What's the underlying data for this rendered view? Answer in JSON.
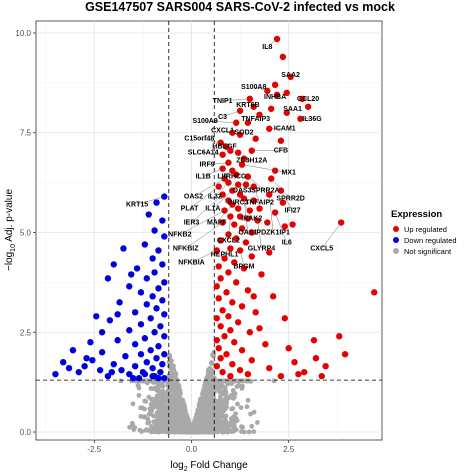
{
  "chart_data": {
    "type": "scatter",
    "title": "GSE147507 SARS004 SARS-CoV-2 infected vs mock",
    "xlabel": {
      "prefix": "log",
      "subscript": "2",
      "suffix": " Fold Change"
    },
    "ylabel": {
      "prefix": "−log",
      "subscript": "10",
      "suffix": " Adj. p-value"
    },
    "xlim": [
      -4.0,
      4.9
    ],
    "ylim": [
      -0.2,
      10.3
    ],
    "x_ticks": [
      -2.5,
      0.0,
      2.5
    ],
    "x_tick_labels": [
      "-2.5",
      "0.0",
      "2.5"
    ],
    "y_ticks": [
      0.0,
      2.5,
      5.0,
      7.5,
      10.0
    ],
    "y_tick_labels": [
      "0.0",
      "2.5",
      "5.0",
      "7.5",
      "10.0"
    ],
    "grid": true,
    "thresholds": {
      "log2fc": [
        -0.585,
        0.585
      ],
      "neg_log10_padj": 1.3
    },
    "legend": {
      "title": "Expression",
      "position": "right",
      "entries": [
        {
          "label": "Up regulated",
          "color": "#e60000"
        },
        {
          "label": "Down regulated",
          "color": "#0000dd"
        },
        {
          "label": "Not significant",
          "color": "#a9a9a9"
        }
      ]
    },
    "series": [
      {
        "name": "Up regulated",
        "color": "#e60000",
        "points": [
          [
            2.2,
            9.85
          ],
          [
            2.35,
            9.4
          ],
          [
            2.55,
            8.9
          ],
          [
            2.15,
            8.7
          ],
          [
            2.2,
            8.45
          ],
          [
            1.95,
            8.55
          ],
          [
            2.45,
            8.5
          ],
          [
            2.85,
            8.35
          ],
          [
            3.0,
            8.15
          ],
          [
            1.5,
            8.35
          ],
          [
            1.6,
            8.15
          ],
          [
            2.05,
            8.1
          ],
          [
            2.45,
            8.0
          ],
          [
            1.25,
            8.05
          ],
          [
            1.75,
            7.95
          ],
          [
            2.8,
            7.85
          ],
          [
            1.15,
            7.75
          ],
          [
            1.45,
            7.75
          ],
          [
            2.0,
            7.6
          ],
          [
            1.05,
            7.5
          ],
          [
            1.25,
            7.45
          ],
          [
            1.65,
            7.35
          ],
          [
            2.3,
            7.3
          ],
          [
            0.75,
            7.25
          ],
          [
            0.9,
            7.15
          ],
          [
            1.0,
            7.05
          ],
          [
            1.2,
            7.0
          ],
          [
            1.55,
            7.05
          ],
          [
            0.8,
            6.95
          ],
          [
            1.35,
            6.85
          ],
          [
            0.95,
            6.75
          ],
          [
            1.3,
            6.7
          ],
          [
            2.15,
            6.55
          ],
          [
            0.8,
            6.6
          ],
          [
            1.05,
            6.55
          ],
          [
            1.15,
            6.45
          ],
          [
            1.45,
            6.4
          ],
          [
            2.05,
            6.35
          ],
          [
            0.85,
            6.35
          ],
          [
            0.95,
            6.25
          ],
          [
            1.2,
            6.2
          ],
          [
            1.4,
            6.2
          ],
          [
            1.6,
            6.15
          ],
          [
            2.3,
            6.05
          ],
          [
            0.7,
            6.15
          ],
          [
            1.05,
            6.05
          ],
          [
            2.0,
            5.95
          ],
          [
            1.25,
            5.95
          ],
          [
            0.8,
            5.95
          ],
          [
            1.35,
            5.85
          ],
          [
            1.6,
            5.8
          ],
          [
            2.35,
            5.75
          ],
          [
            0.95,
            5.8
          ],
          [
            1.05,
            5.7
          ],
          [
            1.75,
            5.6
          ],
          [
            1.2,
            5.6
          ],
          [
            1.5,
            5.55
          ],
          [
            2.15,
            5.5
          ],
          [
            0.85,
            5.55
          ],
          [
            1.0,
            5.4
          ],
          [
            1.25,
            5.4
          ],
          [
            1.45,
            5.35
          ],
          [
            1.7,
            5.3
          ],
          [
            1.95,
            5.25
          ],
          [
            2.4,
            5.15
          ],
          [
            1.1,
            5.2
          ],
          [
            0.8,
            5.25
          ],
          [
            1.3,
            5.1
          ],
          [
            3.85,
            5.25
          ],
          [
            2.6,
            5.2
          ],
          [
            1.55,
            5.0
          ],
          [
            0.95,
            4.95
          ],
          [
            1.15,
            4.85
          ],
          [
            1.4,
            4.75
          ],
          [
            0.75,
            4.8
          ],
          [
            1.0,
            4.6
          ],
          [
            1.25,
            4.55
          ],
          [
            0.65,
            4.55
          ],
          [
            1.55,
            4.4
          ],
          [
            0.85,
            4.35
          ],
          [
            1.1,
            4.25
          ],
          [
            0.7,
            4.15
          ],
          [
            1.35,
            4.1
          ],
          [
            0.95,
            4.0
          ],
          [
            1.8,
            3.95
          ],
          [
            0.75,
            3.85
          ],
          [
            1.15,
            3.75
          ],
          [
            0.65,
            3.65
          ],
          [
            1.45,
            3.55
          ],
          [
            0.9,
            3.5
          ],
          [
            2.1,
            3.4
          ],
          [
            0.7,
            3.35
          ],
          [
            1.05,
            3.25
          ],
          [
            1.3,
            3.15
          ],
          [
            0.8,
            3.05
          ],
          [
            1.65,
            3.0
          ],
          [
            0.95,
            2.9
          ],
          [
            0.65,
            2.85
          ],
          [
            1.2,
            2.75
          ],
          [
            2.4,
            2.85
          ],
          [
            0.75,
            2.65
          ],
          [
            1.0,
            2.55
          ],
          [
            1.5,
            2.5
          ],
          [
            0.85,
            2.4
          ],
          [
            0.65,
            2.3
          ],
          [
            1.1,
            2.25
          ],
          [
            1.9,
            2.2
          ],
          [
            0.7,
            2.1
          ],
          [
            1.3,
            2.05
          ],
          [
            0.9,
            1.95
          ],
          [
            3.15,
            2.3
          ],
          [
            0.75,
            1.85
          ],
          [
            1.55,
            1.8
          ],
          [
            2.65,
            1.75
          ],
          [
            1.05,
            1.7
          ],
          [
            0.65,
            1.65
          ],
          [
            2.0,
            1.6
          ],
          [
            3.45,
            1.65
          ],
          [
            1.25,
            1.55
          ],
          [
            0.8,
            1.5
          ],
          [
            2.9,
            1.5
          ],
          [
            1.45,
            1.45
          ],
          [
            2.3,
            1.4
          ],
          [
            1.0,
            1.4
          ],
          [
            3.8,
            2.4
          ],
          [
            4.7,
            3.5
          ],
          [
            3.95,
            1.95
          ],
          [
            3.35,
            1.4
          ],
          [
            2.5,
            2.1
          ],
          [
            1.75,
            2.6
          ],
          [
            2.0,
            4.5
          ],
          [
            1.6,
            3.4
          ],
          [
            3.2,
            1.85
          ],
          [
            2.75,
            1.45
          ]
        ]
      },
      {
        "name": "Down regulated",
        "color": "#0000dd",
        "points": [
          [
            -0.7,
            5.9
          ],
          [
            -0.9,
            5.75
          ],
          [
            -1.1,
            5.45
          ],
          [
            -0.75,
            5.3
          ],
          [
            -0.95,
            5.05
          ],
          [
            -0.7,
            4.9
          ],
          [
            -1.2,
            4.7
          ],
          [
            -0.85,
            4.55
          ],
          [
            -2.0,
            4.2
          ],
          [
            -1.0,
            4.35
          ],
          [
            -0.75,
            4.2
          ],
          [
            -1.4,
            4.1
          ],
          [
            -0.95,
            4.0
          ],
          [
            -2.15,
            3.85
          ],
          [
            -1.15,
            3.85
          ],
          [
            -0.7,
            3.75
          ],
          [
            -1.6,
            3.65
          ],
          [
            -0.85,
            3.6
          ],
          [
            -1.3,
            3.5
          ],
          [
            -1.0,
            3.4
          ],
          [
            -0.75,
            3.3
          ],
          [
            -1.85,
            3.25
          ],
          [
            -1.15,
            3.2
          ],
          [
            -0.9,
            3.1
          ],
          [
            -1.45,
            3.0
          ],
          [
            -0.7,
            2.95
          ],
          [
            -1.05,
            2.85
          ],
          [
            -2.1,
            2.8
          ],
          [
            -1.3,
            2.7
          ],
          [
            -0.8,
            2.65
          ],
          [
            -1.6,
            2.55
          ],
          [
            -0.95,
            2.5
          ],
          [
            -0.7,
            2.4
          ],
          [
            -1.2,
            2.35
          ],
          [
            -1.9,
            2.3
          ],
          [
            -1.45,
            2.2
          ],
          [
            -0.85,
            2.15
          ],
          [
            -1.05,
            2.05
          ],
          [
            -2.3,
            2.0
          ],
          [
            -0.7,
            1.95
          ],
          [
            -1.3,
            1.95
          ],
          [
            -1.7,
            1.9
          ],
          [
            -0.9,
            1.85
          ],
          [
            -2.55,
            1.8
          ],
          [
            -1.15,
            1.75
          ],
          [
            -2.0,
            1.7
          ],
          [
            -0.75,
            1.7
          ],
          [
            -1.45,
            1.65
          ],
          [
            -2.75,
            1.65
          ],
          [
            -1.0,
            1.6
          ],
          [
            -3.15,
            1.6
          ],
          [
            -1.8,
            1.55
          ],
          [
            -2.35,
            1.55
          ],
          [
            -0.8,
            1.5
          ],
          [
            -1.25,
            1.5
          ],
          [
            -2.9,
            1.5
          ],
          [
            -1.6,
            1.45
          ],
          [
            -3.5,
            1.45
          ],
          [
            -1.0,
            1.4
          ],
          [
            -2.15,
            1.4
          ],
          [
            -1.35,
            1.35
          ],
          [
            -0.7,
            1.35
          ],
          [
            -2.6,
            2.25
          ],
          [
            -2.3,
            2.5
          ],
          [
            -1.75,
            4.6
          ],
          [
            -3.05,
            2.05
          ],
          [
            -1.55,
            3.95
          ],
          [
            -2.45,
            2.9
          ],
          [
            -0.95,
            1.4
          ],
          [
            -1.9,
            2.95
          ],
          [
            -1.2,
            1.45
          ],
          [
            -2.7,
            1.85
          ],
          [
            -3.3,
            1.75
          ],
          [
            -2.05,
            1.5
          ],
          [
            -1.5,
            1.35
          ],
          [
            -0.85,
            1.35
          ]
        ]
      }
    ],
    "labels": [
      {
        "text": "IL8",
        "x": 2.2,
        "y": 9.85,
        "tx": 1.95,
        "ty": 9.6
      },
      {
        "text": "SAA2",
        "x": 2.55,
        "y": 8.9,
        "tx": 2.55,
        "ty": 8.9
      },
      {
        "text": "S100A8",
        "x": 1.95,
        "y": 8.55,
        "tx": 1.6,
        "ty": 8.6
      },
      {
        "text": "CCL20",
        "x": 2.85,
        "y": 8.35,
        "tx": 3.0,
        "ty": 8.3
      },
      {
        "text": "INHBA",
        "x": 2.15,
        "y": 8.45,
        "tx": 2.15,
        "ty": 8.35
      },
      {
        "text": "TNIP1",
        "x": 1.5,
        "y": 8.35,
        "tx": 0.8,
        "ty": 8.25
      },
      {
        "text": "KRT6B",
        "x": 1.6,
        "y": 8.15,
        "tx": 1.45,
        "ty": 8.15
      },
      {
        "text": "SAA1",
        "x": 2.45,
        "y": 8.0,
        "tx": 2.6,
        "ty": 8.05
      },
      {
        "text": "C3",
        "x": 1.25,
        "y": 8.05,
        "tx": 0.8,
        "ty": 7.85
      },
      {
        "text": "TNFAIP3",
        "x": 1.75,
        "y": 7.95,
        "tx": 1.65,
        "ty": 7.8
      },
      {
        "text": "IL36G",
        "x": 2.8,
        "y": 7.85,
        "tx": 3.1,
        "ty": 7.8
      },
      {
        "text": "S100A9",
        "x": 1.15,
        "y": 7.75,
        "tx": 0.35,
        "ty": 7.75
      },
      {
        "text": "ICAM1",
        "x": 2.0,
        "y": 7.6,
        "tx": 2.4,
        "ty": 7.55
      },
      {
        "text": "CXCL1",
        "x": 1.05,
        "y": 7.5,
        "tx": 0.8,
        "ty": 7.5
      },
      {
        "text": "SOD2",
        "x": 1.25,
        "y": 7.45,
        "tx": 1.35,
        "ty": 7.45
      },
      {
        "text": "C15orf48",
        "x": 0.75,
        "y": 7.25,
        "tx": 0.2,
        "ty": 7.3
      },
      {
        "text": "HBEGF",
        "x": 0.9,
        "y": 7.15,
        "tx": 0.85,
        "ty": 7.1
      },
      {
        "text": "CFB",
        "x": 1.55,
        "y": 7.05,
        "tx": 2.3,
        "ty": 7.0
      },
      {
        "text": "SLC6A14",
        "x": 0.8,
        "y": 6.95,
        "tx": 0.3,
        "ty": 6.95
      },
      {
        "text": "ZC3H12A",
        "x": 1.35,
        "y": 6.85,
        "tx": 1.55,
        "ty": 6.75
      },
      {
        "text": "IRF9",
        "x": 0.95,
        "y": 6.75,
        "tx": 0.4,
        "ty": 6.65
      },
      {
        "text": "MX1",
        "x": 1.3,
        "y": 6.7,
        "tx": 2.5,
        "ty": 6.45
      },
      {
        "text": "IL1B",
        "x": 0.8,
        "y": 6.6,
        "tx": 0.3,
        "ty": 6.35
      },
      {
        "text": "LIF",
        "x": 1.05,
        "y": 6.55,
        "tx": 0.8,
        "ty": 6.35
      },
      {
        "text": "RHCG",
        "x": 1.15,
        "y": 6.45,
        "tx": 1.15,
        "ty": 6.35
      },
      {
        "text": "SPRR2A",
        "x": 1.45,
        "y": 6.4,
        "tx": 1.9,
        "ty": 6.0
      },
      {
        "text": "OAS3",
        "x": 1.2,
        "y": 6.2,
        "tx": 1.3,
        "ty": 6.0
      },
      {
        "text": "SPRR2D",
        "x": 2.05,
        "y": 6.35,
        "tx": 2.55,
        "ty": 5.8
      },
      {
        "text": "OAS2",
        "x": 0.85,
        "y": 6.35,
        "tx": 0.05,
        "ty": 5.85
      },
      {
        "text": "IL32",
        "x": 0.95,
        "y": 6.25,
        "tx": 0.6,
        "ty": 5.85
      },
      {
        "text": "BIRC3",
        "x": 1.4,
        "y": 6.2,
        "tx": 1.2,
        "ty": 5.7
      },
      {
        "text": "TNFAIP2",
        "x": 1.6,
        "y": 6.15,
        "tx": 1.75,
        "ty": 5.7
      },
      {
        "text": "PLAT",
        "x": 0.7,
        "y": 6.15,
        "tx": -0.05,
        "ty": 5.55
      },
      {
        "text": "IL1A",
        "x": 1.05,
        "y": 6.05,
        "tx": 0.55,
        "ty": 5.55
      },
      {
        "text": "IFI27",
        "x": 2.3,
        "y": 6.05,
        "tx": 2.6,
        "ty": 5.5
      },
      {
        "text": "IRAK2",
        "x": 1.25,
        "y": 5.95,
        "tx": 1.55,
        "ty": 5.3
      },
      {
        "text": "IER3",
        "x": 0.8,
        "y": 5.95,
        "tx": 0.0,
        "ty": 5.2
      },
      {
        "text": "MAFF",
        "x": 1.05,
        "y": 5.7,
        "tx": 0.65,
        "ty": 5.2
      },
      {
        "text": "OAS1",
        "x": 1.35,
        "y": 5.85,
        "tx": 1.45,
        "ty": 4.95
      },
      {
        "text": "PDZK1IP1",
        "x": 2.0,
        "y": 5.95,
        "tx": 2.1,
        "ty": 4.95
      },
      {
        "text": "NFKB2",
        "x": 0.85,
        "y": 5.55,
        "tx": -0.3,
        "ty": 4.9
      },
      {
        "text": "CXCL2",
        "x": 1.0,
        "y": 5.4,
        "tx": 0.95,
        "ty": 4.75
      },
      {
        "text": "IL6",
        "x": 2.15,
        "y": 5.5,
        "tx": 2.45,
        "ty": 4.7
      },
      {
        "text": "CXCL5",
        "x": 3.85,
        "y": 5.25,
        "tx": 3.35,
        "ty": 4.55
      },
      {
        "text": "GLYRP4",
        "x": 1.7,
        "y": 5.3,
        "tx": 1.8,
        "ty": 4.55
      },
      {
        "text": "NFKBIZ",
        "x": 0.8,
        "y": 5.25,
        "tx": -0.15,
        "ty": 4.55
      },
      {
        "text": "HEPHL1",
        "x": 1.0,
        "y": 4.6,
        "tx": 0.85,
        "ty": 4.4
      },
      {
        "text": "NFKBIA",
        "x": 0.65,
        "y": 4.55,
        "tx": 0.0,
        "ty": 4.2
      },
      {
        "text": "BPGM",
        "x": 1.25,
        "y": 4.55,
        "tx": 1.35,
        "ty": 4.1
      },
      {
        "text": "KRT15",
        "x": -0.7,
        "y": 5.9,
        "tx": -1.4,
        "ty": 5.65
      }
    ]
  }
}
